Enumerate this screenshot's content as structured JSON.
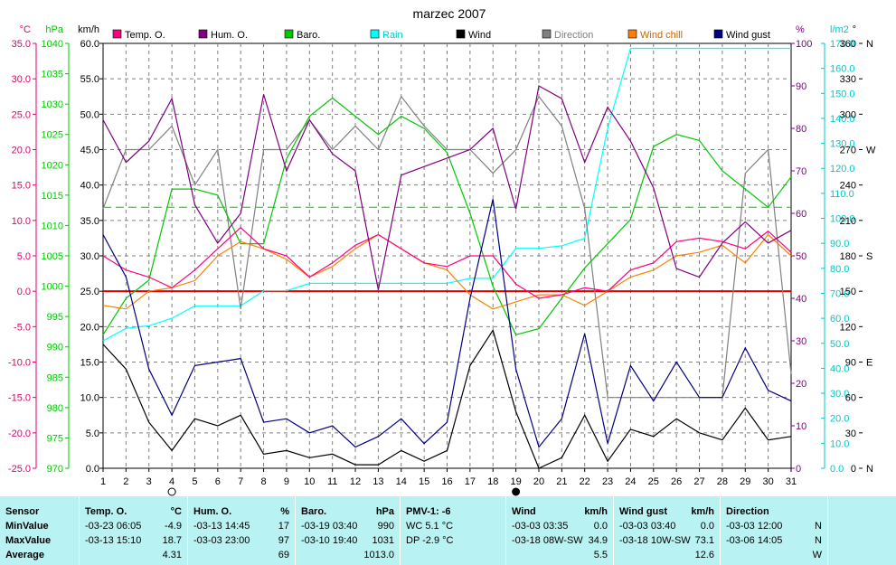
{
  "chart_data": {
    "type": "line",
    "title": "marzec 2007",
    "x": [
      1,
      2,
      3,
      4,
      5,
      6,
      7,
      8,
      9,
      10,
      11,
      12,
      13,
      14,
      15,
      16,
      17,
      18,
      19,
      20,
      21,
      22,
      23,
      24,
      25,
      26,
      27,
      28,
      29,
      30,
      31
    ],
    "axes": {
      "temp": {
        "unit": "°C",
        "min": -25,
        "max": 35,
        "step": 5,
        "color": "#e0006e"
      },
      "baro": {
        "unit": "hPa",
        "min": 970,
        "max": 1040,
        "step": 5,
        "color": "#00c800"
      },
      "wind": {
        "unit": "km/h",
        "min": 0,
        "max": 60,
        "step": 5,
        "color": "#000000"
      },
      "hum": {
        "unit": "%",
        "min": 0,
        "max": 100,
        "step": 10,
        "color": "#800080"
      },
      "rain": {
        "unit": "l/m2",
        "min": 0,
        "max": 170,
        "step": 10,
        "color": "#00c8c8"
      },
      "direction": {
        "unit": "°",
        "min": 0,
        "max": 360,
        "step": 30,
        "color": "#000000",
        "labels": [
          [
            "0",
            "N"
          ],
          [
            "30",
            ""
          ],
          [
            "60",
            ""
          ],
          [
            "90",
            "E"
          ],
          [
            "120",
            ""
          ],
          [
            "150",
            ""
          ],
          [
            "180",
            "S"
          ],
          [
            "210",
            ""
          ],
          [
            "240",
            ""
          ],
          [
            "270",
            "W"
          ],
          [
            "300",
            ""
          ],
          [
            "330",
            ""
          ],
          [
            "360",
            "N"
          ]
        ]
      }
    },
    "series": [
      {
        "key": "temp",
        "name": "Temp. O.",
        "axis": "temp",
        "color": "#ff0080",
        "values": [
          5,
          3,
          2,
          0.5,
          3,
          6,
          9,
          6,
          5,
          2,
          4,
          6.5,
          8,
          6,
          4,
          3.5,
          5,
          5,
          1,
          -1,
          -0.5,
          0.5,
          0,
          3,
          4,
          7,
          7.5,
          7,
          6,
          8.5,
          5.5
        ]
      },
      {
        "key": "hum",
        "name": "Hum. O.",
        "axis": "hum",
        "color": "#800080",
        "values": [
          82,
          72,
          77,
          87,
          62,
          53,
          60,
          88,
          70,
          82,
          74,
          70,
          42,
          69,
          71,
          73,
          75,
          80,
          61,
          90,
          87,
          72,
          85,
          77,
          66,
          47,
          45,
          53,
          58,
          53,
          56
        ]
      },
      {
        "key": "baro",
        "name": "Baro.",
        "axis": "baro",
        "color": "#00c800",
        "values": [
          992,
          998,
          1001,
          1016,
          1016,
          1015,
          1007,
          1007,
          1021,
          1028,
          1031,
          1028,
          1025,
          1028,
          1026,
          1022,
          1012,
          1000,
          992,
          993,
          998,
          1003,
          1007,
          1011,
          1023,
          1025,
          1024,
          1019,
          1016,
          1013,
          1018
        ]
      },
      {
        "key": "rain",
        "name": "Rain",
        "axis": "rain",
        "color": "#00ffff",
        "values": [
          51,
          56,
          57,
          60,
          65,
          65,
          65,
          71,
          71,
          74,
          74,
          74,
          74,
          74,
          74,
          74,
          76,
          76,
          88,
          88,
          89,
          92,
          136,
          168,
          168,
          168,
          168,
          168,
          168,
          168,
          168
        ]
      },
      {
        "key": "wind",
        "name": "Wind",
        "axis": "wind",
        "color": "#000000",
        "values": [
          17.5,
          14,
          6.5,
          2.5,
          7,
          6,
          7.5,
          2,
          2.5,
          1.5,
          2,
          0.5,
          0.5,
          2.5,
          1,
          2.5,
          14.5,
          19.5,
          8,
          0,
          1.5,
          7.5,
          1,
          5.5,
          4.5,
          7,
          5,
          4,
          8.5,
          4,
          4.5
        ]
      },
      {
        "key": "direction",
        "name": "Direction",
        "axis": "direction",
        "color": "#808080",
        "values": [
          220,
          270,
          270,
          290,
          240,
          270,
          135,
          270,
          270,
          295,
          270,
          290,
          270,
          315,
          290,
          270,
          270,
          250,
          270,
          315,
          290,
          220,
          60,
          60,
          60,
          60,
          60,
          60,
          250,
          270,
          80
        ]
      },
      {
        "key": "chill",
        "name": "Wind chill",
        "axis": "temp",
        "color": "#ff8000",
        "values": [
          -2,
          -2.5,
          0,
          0.5,
          1.5,
          5,
          7,
          6,
          4.5,
          2,
          3.5,
          6,
          8,
          6,
          4,
          3,
          -0.5,
          -2.5,
          -1.5,
          -0.5,
          -0.5,
          -2,
          0,
          2,
          3,
          5,
          5.5,
          6.5,
          4,
          8,
          5
        ]
      },
      {
        "key": "gust",
        "name": "Wind gust",
        "axis": "wind",
        "color": "#000080",
        "values": [
          33,
          27,
          14,
          7.5,
          14.5,
          15,
          15.5,
          6.5,
          7,
          5,
          6,
          3,
          4.5,
          7,
          3.5,
          6.5,
          24,
          38,
          14,
          3,
          7,
          19,
          3.5,
          14.5,
          9.5,
          15,
          10,
          10,
          17,
          11,
          9.5
        ]
      }
    ],
    "reference_lines": [
      {
        "axis": "temp",
        "value": 0,
        "color": "#e00000",
        "style": "solid"
      },
      {
        "axis": "baro",
        "value": 1013,
        "color": "#00c800",
        "style": "dashed"
      }
    ],
    "moon_phases": [
      {
        "x": 4,
        "phase": "full"
      },
      {
        "x": 19,
        "phase": "new"
      }
    ],
    "grid": true
  },
  "stats": {
    "header": {
      "sensor": "Sensor",
      "temp": "Temp. O.",
      "temp_unit": "°C",
      "hum": "Hum. O.",
      "hum_unit": "%",
      "baro": "Baro.",
      "baro_unit": "hPa",
      "pmv": "PMV-1: -6",
      "wind": "Wind",
      "wind_unit": "km/h",
      "gust": "Wind gust",
      "gust_unit": "km/h",
      "direction": "Direction"
    },
    "row_labels": [
      "MinValue",
      "MaxValue",
      "Average"
    ],
    "temp": [
      {
        "date": "-03-23",
        "time": "06:05",
        "val": "-4.9"
      },
      {
        "date": "-03-13",
        "time": "15:10",
        "val": "18.7"
      },
      {
        "val": "4.31"
      }
    ],
    "hum": [
      {
        "date": "-03-13",
        "time": "14:45",
        "val": "17"
      },
      {
        "date": "-03-03",
        "time": "23:00",
        "val": "97"
      },
      {
        "val": "69"
      }
    ],
    "baro": [
      {
        "date": "-03-19",
        "time": "03:40",
        "val": "990"
      },
      {
        "date": "-03-10",
        "time": "19:40",
        "val": "1031"
      },
      {
        "val": "1013.0"
      }
    ],
    "pmv": [
      "WC 5.1 °C",
      "DP -2.9 °C"
    ],
    "wind": [
      {
        "date": "-03-03",
        "time": "03:35",
        "val": "0.0"
      },
      {
        "date": "-03-18",
        "time": "08W-SW",
        "val": "34.9"
      },
      {
        "val": "5.5"
      }
    ],
    "gust": [
      {
        "date": "-03-03",
        "time": "03:40",
        "val": "0.0"
      },
      {
        "date": "-03-18",
        "time": "10W-SW",
        "val": "73.1"
      },
      {
        "val": "12.6"
      }
    ],
    "direction": [
      {
        "date": "-03-03",
        "time": "12:00",
        "val": "N"
      },
      {
        "date": "-03-06",
        "time": "14:05",
        "val": "N"
      },
      {
        "val": "W"
      }
    ]
  }
}
